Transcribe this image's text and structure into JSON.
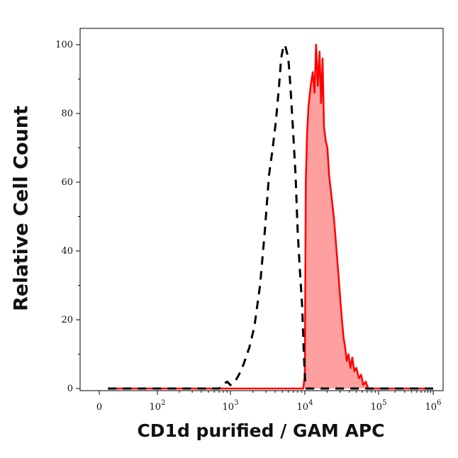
{
  "chart_data": {
    "type": "area",
    "title": "",
    "xlabel": "CD1d purified / GAM APC",
    "ylabel": "Relative Cell Count",
    "x_scale": "biexponential",
    "ylim": [
      0,
      105
    ],
    "x_ticks": [
      {
        "value": 0,
        "label": "0"
      },
      {
        "value": 100,
        "label": "10",
        "exp": "2"
      },
      {
        "value": 1000,
        "label": "10",
        "exp": "3"
      },
      {
        "value": 10000,
        "label": "10",
        "exp": "4"
      },
      {
        "value": 100000,
        "label": "10",
        "exp": "5"
      },
      {
        "value": 1000000,
        "label": "10",
        "exp": "6"
      }
    ],
    "y_ticks": [
      0,
      20,
      40,
      60,
      80,
      100
    ],
    "grid": false,
    "series": [
      {
        "style": "dashed",
        "color": "#000000",
        "fill": "none",
        "x": [
          1,
          50,
          200,
          500,
          700,
          780,
          900,
          1000,
          1150,
          1300,
          1500,
          1800,
          2100,
          2500,
          2900,
          3300,
          3700,
          4100,
          4500,
          4800,
          5100,
          5400,
          5700,
          6000,
          6400,
          6900,
          7500,
          8000,
          8600,
          9200,
          9700,
          10100,
          10500,
          12000,
          15000,
          30000,
          100000,
          1000000
        ],
        "y": [
          0,
          0,
          0,
          0,
          0,
          1,
          2,
          1,
          2,
          4,
          7,
          12,
          18,
          30,
          46,
          62,
          70,
          78,
          88,
          96,
          99,
          100,
          98,
          96,
          88,
          76,
          62,
          46,
          34,
          24,
          10,
          2,
          0,
          0,
          0,
          0,
          0,
          0
        ]
      },
      {
        "style": "solid",
        "color": "#ff0000",
        "fill": "#ffa0a0",
        "x": [
          1,
          1000,
          9500,
          10000,
          10300,
          10700,
          11200,
          12000,
          12800,
          13500,
          14200,
          15000,
          15800,
          16600,
          17400,
          18200,
          19200,
          20200,
          21300,
          22400,
          23500,
          24700,
          26000,
          27400,
          28800,
          30200,
          31800,
          33400,
          35200,
          37000,
          39000,
          41500,
          44000,
          47000,
          50000,
          54000,
          58000,
          62000,
          67000,
          72000,
          80000,
          90000,
          100000,
          1000000
        ],
        "y": [
          0,
          0,
          0,
          4,
          60,
          74,
          82,
          88,
          92,
          86,
          100,
          88,
          98,
          83,
          96,
          76,
          72,
          70,
          62,
          58,
          54,
          50,
          44,
          38,
          32,
          26,
          20,
          15,
          12,
          8,
          10,
          6,
          9,
          5,
          6,
          3,
          4,
          1,
          2,
          0,
          0,
          0,
          0,
          0
        ]
      }
    ]
  }
}
